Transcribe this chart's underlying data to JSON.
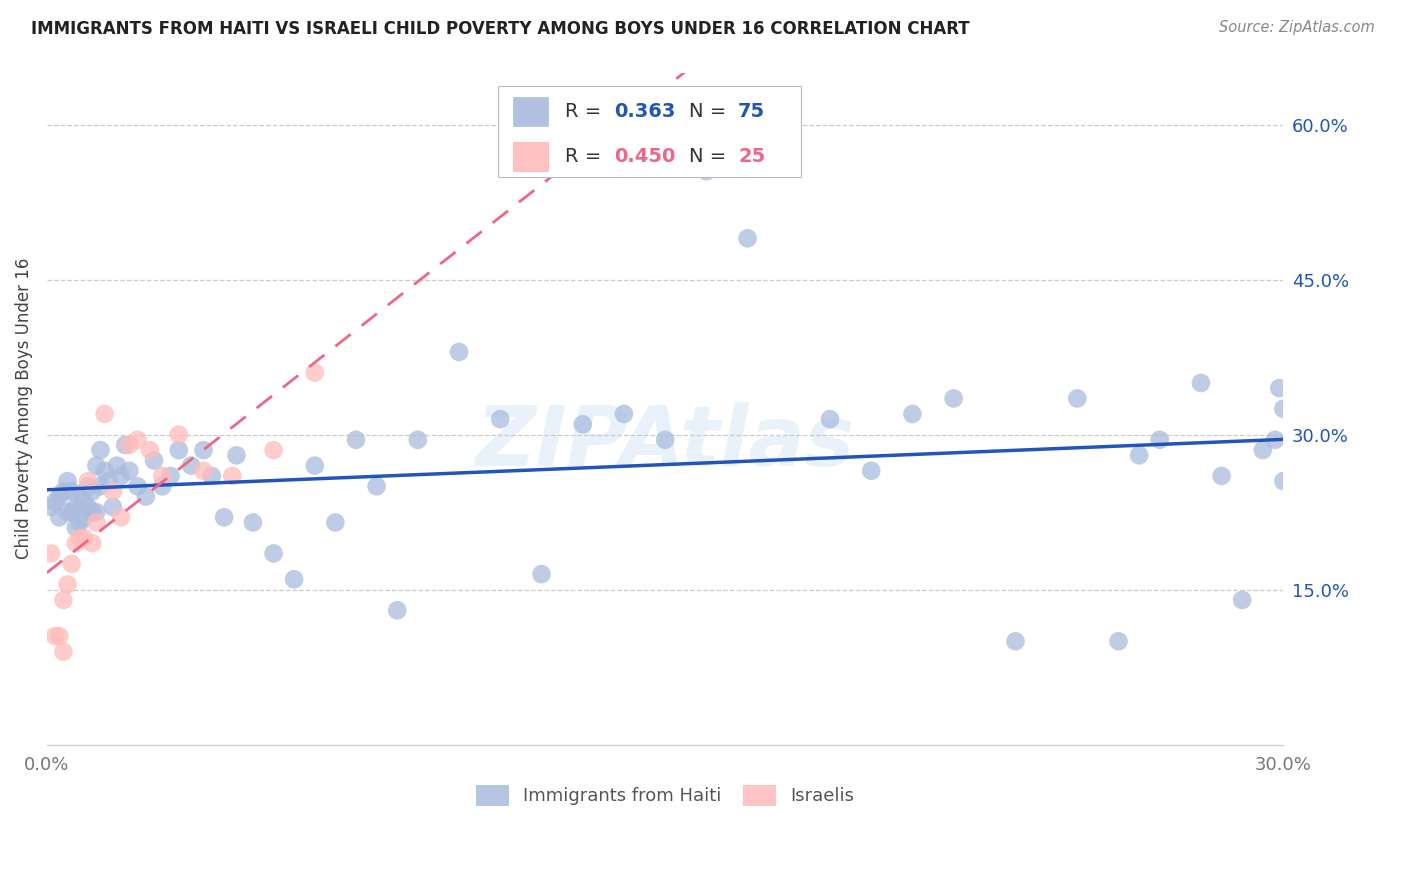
{
  "title": "IMMIGRANTS FROM HAITI VS ISRAELI CHILD POVERTY AMONG BOYS UNDER 16 CORRELATION CHART",
  "source": "Source: ZipAtlas.com",
  "ylabel": "Child Poverty Among Boys Under 16",
  "legend_label1": "Immigrants from Haiti",
  "legend_label2": "Israelis",
  "R1": "0.363",
  "N1": "75",
  "R2": "0.450",
  "N2": "25",
  "xlim": [
    0.0,
    0.3
  ],
  "ylim": [
    0.0,
    0.65
  ],
  "yticks_right": [
    0.15,
    0.3,
    0.45,
    0.6
  ],
  "ytick_labels_right": [
    "15.0%",
    "30.0%",
    "45.0%",
    "60.0%"
  ],
  "xticks": [
    0.0,
    0.05,
    0.1,
    0.15,
    0.2,
    0.25,
    0.3
  ],
  "xtick_labels": [
    "0.0%",
    "",
    "",
    "",
    "",
    "",
    "30.0%"
  ],
  "color_blue": "#AABBDD",
  "color_pink": "#FFBBBB",
  "color_blue_line": "#2255BB",
  "color_pink_line": "#EE6688",
  "watermark": "ZIPAtlas",
  "blue_x": [
    0.001,
    0.002,
    0.003,
    0.003,
    0.004,
    0.005,
    0.005,
    0.006,
    0.006,
    0.007,
    0.007,
    0.008,
    0.008,
    0.009,
    0.009,
    0.01,
    0.01,
    0.011,
    0.011,
    0.012,
    0.012,
    0.013,
    0.013,
    0.014,
    0.015,
    0.016,
    0.017,
    0.018,
    0.019,
    0.02,
    0.022,
    0.024,
    0.026,
    0.028,
    0.03,
    0.032,
    0.035,
    0.038,
    0.04,
    0.043,
    0.046,
    0.05,
    0.055,
    0.06,
    0.065,
    0.07,
    0.075,
    0.08,
    0.085,
    0.09,
    0.1,
    0.11,
    0.12,
    0.13,
    0.14,
    0.15,
    0.16,
    0.17,
    0.19,
    0.2,
    0.21,
    0.22,
    0.235,
    0.25,
    0.26,
    0.265,
    0.27,
    0.28,
    0.285,
    0.29,
    0.295,
    0.298,
    0.299,
    0.3,
    0.3
  ],
  "blue_y": [
    0.23,
    0.235,
    0.24,
    0.22,
    0.245,
    0.225,
    0.255,
    0.225,
    0.245,
    0.23,
    0.21,
    0.24,
    0.215,
    0.22,
    0.235,
    0.25,
    0.23,
    0.245,
    0.225,
    0.27,
    0.225,
    0.25,
    0.285,
    0.265,
    0.255,
    0.23,
    0.27,
    0.26,
    0.29,
    0.265,
    0.25,
    0.24,
    0.275,
    0.25,
    0.26,
    0.285,
    0.27,
    0.285,
    0.26,
    0.22,
    0.28,
    0.215,
    0.185,
    0.16,
    0.27,
    0.215,
    0.295,
    0.25,
    0.13,
    0.295,
    0.38,
    0.315,
    0.165,
    0.31,
    0.32,
    0.295,
    0.555,
    0.49,
    0.315,
    0.265,
    0.32,
    0.335,
    0.1,
    0.335,
    0.1,
    0.28,
    0.295,
    0.35,
    0.26,
    0.14,
    0.285,
    0.295,
    0.345,
    0.255,
    0.325
  ],
  "pink_x": [
    0.001,
    0.002,
    0.003,
    0.004,
    0.004,
    0.005,
    0.006,
    0.007,
    0.008,
    0.009,
    0.01,
    0.011,
    0.012,
    0.014,
    0.016,
    0.018,
    0.02,
    0.022,
    0.025,
    0.028,
    0.032,
    0.038,
    0.045,
    0.055,
    0.065
  ],
  "pink_y": [
    0.185,
    0.105,
    0.105,
    0.14,
    0.09,
    0.155,
    0.175,
    0.195,
    0.2,
    0.2,
    0.255,
    0.195,
    0.215,
    0.32,
    0.245,
    0.22,
    0.29,
    0.295,
    0.285,
    0.26,
    0.3,
    0.265,
    0.26,
    0.285,
    0.36
  ]
}
